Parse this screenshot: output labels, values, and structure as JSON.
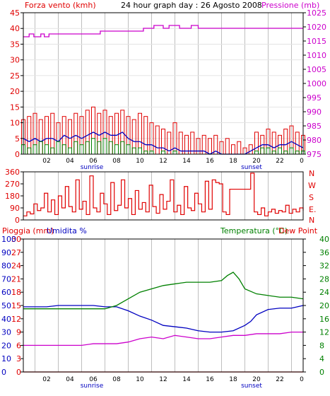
{
  "colors": {
    "red": "#e00000",
    "magenta": "#cc00cc",
    "blue": "#0000c0",
    "green": "#008000",
    "grid": "#bfbfbf",
    "frame": "#000000"
  },
  "texts": {
    "wind_label": "Forza vento (kmh)",
    "header_title": "24 hour graph day : 26 Agosto 2008",
    "pressure_label": "Pressione (mb)",
    "rain_label": "Pioggia (mm)",
    "humidity_label": "Umidita %",
    "temp_label": "Temperatura (°C)",
    "dew_label": "Dew Point",
    "sunrise": "sunrise",
    "sunset": "sunset",
    "compass_n": "N",
    "compass_w": "W",
    "compass_s": "S",
    "compass_e": "E.",
    "compass_n2": "N"
  },
  "x_ticks": [
    "02",
    "04",
    "06",
    "08",
    "10",
    "12",
    "14",
    "16",
    "18",
    "20",
    "22",
    "0"
  ],
  "axes": {
    "wind": [
      "45",
      "40",
      "35",
      "30",
      "25",
      "20",
      "15",
      "10",
      "5",
      "0"
    ],
    "pressure": [
      "1025",
      "1020",
      "1015",
      "1010",
      "1005",
      "1000",
      "995",
      "990",
      "985",
      "980",
      "975"
    ],
    "direction": [
      "360",
      "270",
      "180",
      "90",
      "0"
    ],
    "rain": [
      "30",
      "27",
      "24",
      "21",
      "18",
      "15",
      "12",
      "9",
      "6",
      "3",
      "0"
    ],
    "humidity": [
      "100",
      "90",
      "80",
      "70",
      "60",
      "50",
      "40",
      "30",
      "20",
      "10",
      "0"
    ],
    "temperature": [
      "40",
      "36",
      "32",
      "28",
      "24",
      "20",
      "16",
      "12",
      "8",
      "4",
      "0"
    ]
  },
  "chart_data": [
    {
      "type": "bar",
      "title": "24 hour graph day : 26 Agosto 2008",
      "xlabel": "",
      "ylabel": "Forza vento (kmh)",
      "y2label": "Pressione (mb)",
      "ylim": [
        0,
        45
      ],
      "y2lim": [
        975,
        1025
      ],
      "x_range": [
        0,
        24
      ],
      "series": [
        {
          "name": "gust",
          "color": "#e00000",
          "style": "bars",
          "x": [
            0.0,
            0.5,
            1.0,
            1.5,
            2.0,
            2.5,
            3.0,
            3.5,
            4.0,
            4.5,
            5.0,
            5.5,
            6.0,
            6.5,
            7.0,
            7.5,
            8.0,
            8.5,
            9.0,
            9.5,
            10.0,
            10.5,
            11.0,
            11.5,
            12.0,
            12.5,
            13.0,
            13.5,
            14.0,
            14.5,
            15.0,
            15.5,
            16.0,
            16.5,
            17.0,
            17.5,
            18.0,
            18.5,
            19.0,
            19.5,
            20.0,
            20.5,
            21.0,
            21.5,
            22.0,
            22.5,
            23.0,
            23.5,
            24.0
          ],
          "values": [
            11,
            12,
            13,
            11,
            12,
            13,
            10,
            12,
            11,
            13,
            12,
            14,
            15,
            13,
            14,
            12,
            13,
            14,
            12,
            11,
            13,
            12,
            10,
            9,
            8,
            7,
            10,
            7,
            6,
            7,
            5,
            6,
            5,
            6,
            4,
            5,
            3,
            4,
            2,
            3,
            7,
            6,
            8,
            7,
            6,
            8,
            9,
            7,
            6
          ]
        },
        {
          "name": "mean",
          "color": "#0000c0",
          "style": "line",
          "x": [
            0.0,
            0.5,
            1.0,
            1.5,
            2.0,
            2.5,
            3.0,
            3.5,
            4.0,
            4.5,
            5.0,
            5.5,
            6.0,
            6.5,
            7.0,
            7.5,
            8.0,
            8.5,
            9.0,
            9.5,
            10.0,
            10.5,
            11.0,
            11.5,
            12.0,
            12.5,
            13.0,
            13.5,
            14.0,
            14.5,
            15.0,
            15.5,
            16.0,
            16.5,
            17.0,
            17.5,
            18.0,
            18.5,
            19.0,
            19.5,
            20.0,
            20.5,
            21.0,
            21.5,
            22.0,
            22.5,
            23.0,
            23.5,
            24.0
          ],
          "values": [
            5,
            4,
            5,
            4,
            5,
            5,
            4,
            6,
            5,
            6,
            5,
            6,
            7,
            6,
            7,
            6,
            6,
            7,
            5,
            4,
            4,
            3,
            3,
            2,
            2,
            1,
            2,
            1,
            1,
            1,
            1,
            1,
            0,
            1,
            0,
            0,
            0,
            0,
            0,
            1,
            2,
            3,
            3,
            2,
            3,
            3,
            4,
            3,
            2
          ]
        },
        {
          "name": "wind",
          "color": "#008000",
          "style": "bars",
          "x": [
            0.0,
            0.5,
            1.0,
            1.5,
            2.0,
            2.5,
            3.0,
            3.5,
            4.0,
            4.5,
            5.0,
            5.5,
            6.0,
            6.5,
            7.0,
            7.5,
            8.0,
            8.5,
            9.0,
            9.5,
            10.0,
            10.5,
            11.0,
            11.5,
            12.0,
            12.5,
            13.0,
            13.5,
            14.0,
            14.5,
            15.0,
            15.5,
            16.0,
            16.5,
            17.0,
            17.5,
            18.0,
            18.5,
            19.0,
            19.5,
            20.0,
            20.5,
            21.0,
            21.5,
            22.0,
            22.5,
            23.0,
            23.5,
            24.0
          ],
          "values": [
            3,
            2,
            3,
            4,
            3,
            2,
            4,
            3,
            2,
            4,
            3,
            4,
            5,
            4,
            5,
            4,
            3,
            4,
            3,
            2,
            2,
            1,
            1,
            0,
            1,
            0,
            1,
            0,
            0,
            0,
            0,
            0,
            0,
            0,
            0,
            0,
            0,
            0,
            0,
            0,
            1,
            2,
            2,
            1,
            2,
            1,
            2,
            1,
            1
          ]
        },
        {
          "name": "pressure",
          "color": "#cc00cc",
          "style": "line",
          "axis": "right",
          "x": [
            0.0,
            0.5,
            0.9,
            1.5,
            1.8,
            2.2,
            3.0,
            4.0,
            5.0,
            6.0,
            6.6,
            7.0,
            8.0,
            9.0,
            10.0,
            10.3,
            10.8,
            11.2,
            11.6,
            12.0,
            12.5,
            13.0,
            13.4,
            14.0,
            14.4,
            15.0,
            16.0,
            17.0,
            18.0,
            19.0,
            20.0,
            21.0,
            22.0,
            23.0,
            24.0
          ],
          "values": [
            1016.5,
            1017.5,
            1016.5,
            1017.5,
            1016.5,
            1017.5,
            1017.5,
            1017.5,
            1017.5,
            1017.5,
            1018.5,
            1018.5,
            1018.5,
            1018.5,
            1018.5,
            1019.5,
            1019.5,
            1020.5,
            1020.5,
            1019.5,
            1020.5,
            1020.5,
            1019.5,
            1019.5,
            1020.5,
            1019.5,
            1019.5,
            1019.5,
            1019.5,
            1019.5,
            1019.5,
            1019.5,
            1019.5,
            1019.5,
            1019.5
          ]
        }
      ]
    },
    {
      "type": "line",
      "title": "",
      "ylabel": "",
      "ylim": [
        0,
        360
      ],
      "x_range": [
        0,
        24
      ],
      "series": [
        {
          "name": "direction",
          "color": "#e00000",
          "x": [
            0.0,
            0.3,
            0.6,
            0.9,
            1.2,
            1.5,
            1.8,
            2.1,
            2.4,
            2.7,
            3.0,
            3.3,
            3.6,
            3.9,
            4.2,
            4.5,
            4.8,
            5.1,
            5.4,
            5.7,
            6.0,
            6.3,
            6.6,
            6.9,
            7.2,
            7.5,
            7.8,
            8.1,
            8.4,
            8.7,
            9.0,
            9.3,
            9.6,
            9.9,
            10.2,
            10.5,
            10.8,
            11.1,
            11.4,
            11.7,
            12.0,
            12.3,
            12.6,
            12.9,
            13.2,
            13.5,
            13.8,
            14.1,
            14.4,
            14.7,
            15.0,
            15.3,
            15.6,
            15.9,
            16.2,
            16.5,
            16.8,
            17.1,
            17.4,
            17.7,
            18.0,
            18.3,
            18.6,
            18.9,
            19.2,
            19.5,
            19.8,
            20.1,
            20.4,
            20.7,
            21.0,
            21.3,
            21.6,
            21.9,
            22.2,
            22.5,
            22.8,
            23.1,
            23.4,
            23.7,
            24.0
          ],
          "values": [
            30,
            60,
            45,
            120,
            70,
            90,
            200,
            60,
            150,
            40,
            180,
            90,
            250,
            100,
            60,
            300,
            80,
            140,
            40,
            330,
            90,
            60,
            200,
            120,
            40,
            280,
            70,
            110,
            300,
            90,
            160,
            40,
            220,
            80,
            130,
            60,
            260,
            100,
            50,
            190,
            80,
            140,
            300,
            60,
            110,
            40,
            250,
            90,
            70,
            200,
            120,
            60,
            290,
            80,
            300,
            280,
            270,
            60,
            40,
            230,
            230,
            230,
            230,
            230,
            230,
            350,
            60,
            40,
            90,
            30,
            60,
            80,
            50,
            70,
            60,
            110,
            50,
            80,
            60,
            90,
            70
          ]
        }
      ]
    },
    {
      "type": "line",
      "title": "",
      "ylabel": "Pioggia (mm)",
      "y2label": "Temperatura (°C)",
      "ylim": [
        0,
        30
      ],
      "y2lim": [
        0,
        40
      ],
      "x_range": [
        0,
        24
      ],
      "series": [
        {
          "name": "Pioggia (mm)",
          "color": "#e00000",
          "axis": "left",
          "x": [
            0,
            24
          ],
          "values": [
            0,
            0
          ]
        },
        {
          "name": "Umidita %",
          "color": "#0000c0",
          "axis": "left_humidity",
          "ylim": [
            0,
            100
          ],
          "x": [
            0.0,
            1.0,
            2.0,
            3.0,
            4.0,
            5.0,
            6.0,
            7.0,
            8.0,
            9.0,
            10.0,
            11.0,
            12.0,
            13.0,
            14.0,
            15.0,
            16.0,
            17.0,
            18.0,
            19.0,
            19.5,
            20.0,
            21.0,
            22.0,
            23.0,
            24.0
          ],
          "values": [
            49,
            49,
            49,
            50,
            50,
            50,
            50,
            49,
            49,
            46,
            42,
            39,
            35,
            34,
            33,
            31,
            30,
            30,
            31,
            35,
            38,
            43,
            47,
            48,
            48,
            50
          ]
        },
        {
          "name": "Temperatura (°C)",
          "color": "#008000",
          "axis": "right",
          "ylim": [
            0,
            40
          ],
          "x": [
            0.0,
            1.0,
            2.0,
            3.0,
            4.0,
            5.0,
            6.0,
            7.0,
            8.0,
            9.0,
            10.0,
            11.0,
            12.0,
            13.0,
            14.0,
            15.0,
            16.0,
            17.0,
            17.5,
            18.0,
            18.5,
            19.0,
            20.0,
            21.0,
            22.0,
            23.0,
            24.0
          ],
          "values": [
            19,
            19,
            19,
            19,
            19,
            19,
            19,
            19,
            20,
            22,
            24,
            25,
            26,
            26.5,
            27,
            27,
            27,
            27.5,
            29,
            30,
            28,
            25,
            23.5,
            23,
            22.5,
            22.5,
            22
          ]
        },
        {
          "name": "Dew Point",
          "color": "#cc00cc",
          "axis": "right",
          "ylim": [
            0,
            40
          ],
          "x": [
            0.0,
            1.0,
            2.0,
            3.0,
            4.0,
            5.0,
            6.0,
            7.0,
            8.0,
            9.0,
            10.0,
            11.0,
            12.0,
            13.0,
            14.0,
            15.0,
            16.0,
            17.0,
            18.0,
            19.0,
            20.0,
            21.0,
            22.0,
            23.0,
            24.0
          ],
          "values": [
            8,
            8,
            8,
            8,
            8,
            8,
            8.5,
            8.5,
            8.5,
            9,
            10,
            10.5,
            10,
            11,
            10.5,
            10,
            10,
            10.5,
            11,
            11,
            11.5,
            11.5,
            11.5,
            12,
            12
          ]
        }
      ]
    }
  ]
}
